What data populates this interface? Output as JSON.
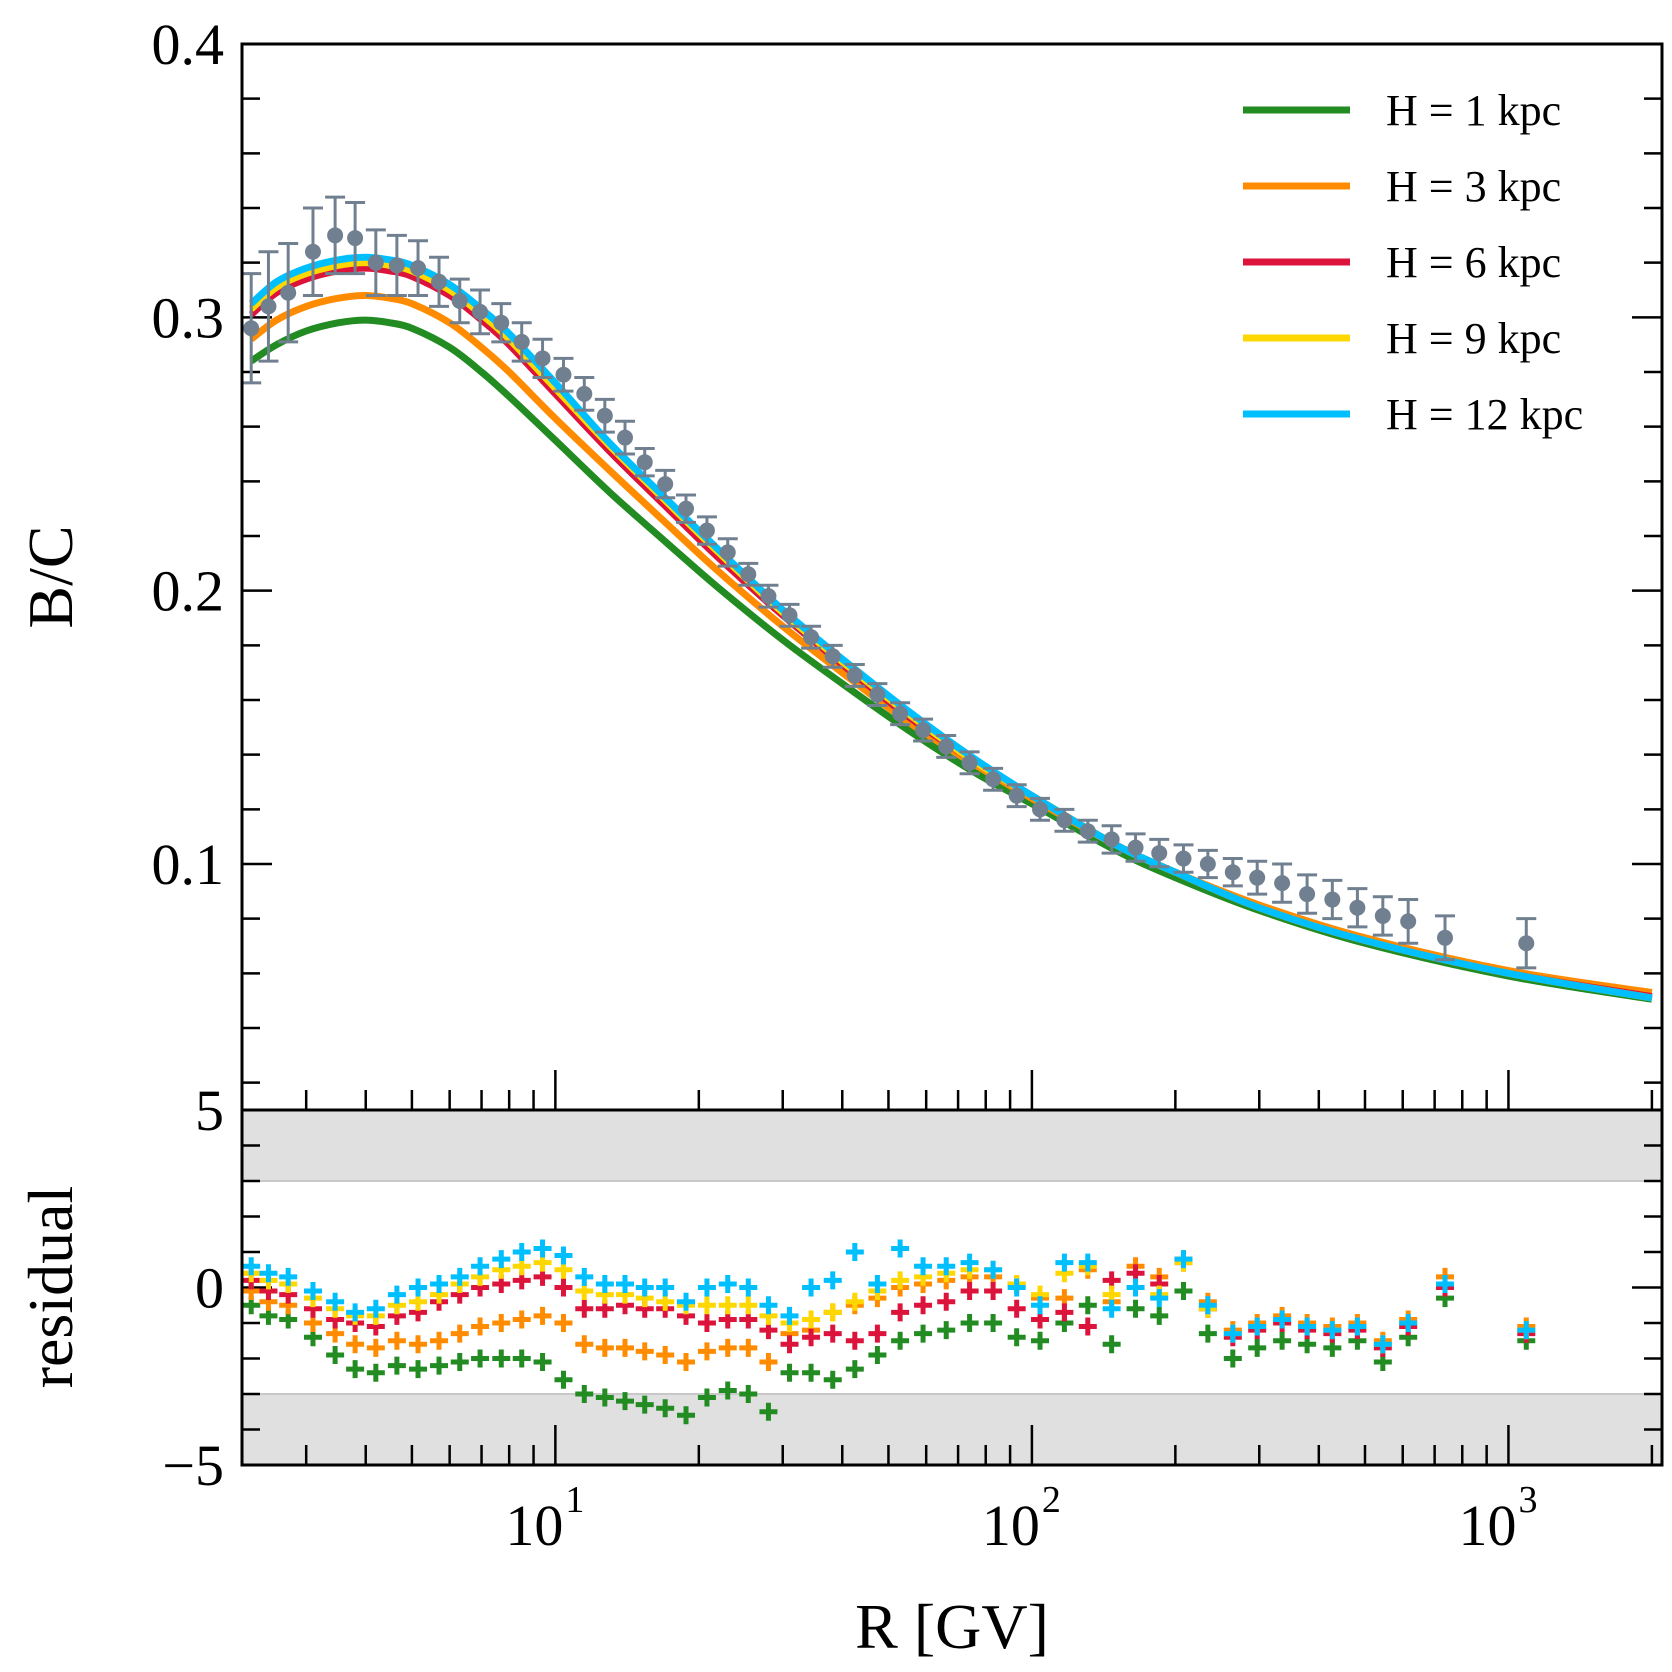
{
  "chart_data": [
    {
      "type": "line",
      "panel": "top",
      "title": "",
      "xlabel": "",
      "ylabel": "B/C",
      "xscale": "log",
      "xlim": [
        2.2,
        2100
      ],
      "ylim": [
        0.01,
        0.4
      ],
      "yticks_labeled": [
        0.1,
        0.2,
        0.3,
        0.4
      ],
      "ytick_labels": [
        "0.1",
        "0.2",
        "0.3",
        "0.4"
      ],
      "ytick_minor_step": 0.02,
      "legend_position": "top-right",
      "series": [
        {
          "name": "H = 1 kpc",
          "color": "#228b22",
          "x": [
            2.3,
            2.6,
            3,
            3.5,
            4,
            4.5,
            5,
            6,
            7,
            8,
            10,
            13,
            17,
            22,
            30,
            40,
            55,
            75,
            100,
            150,
            200,
            300,
            500,
            1000,
            2000
          ],
          "y": [
            0.284,
            0.29,
            0.295,
            0.298,
            0.299,
            0.298,
            0.296,
            0.289,
            0.28,
            0.271,
            0.255,
            0.236,
            0.218,
            0.201,
            0.182,
            0.166,
            0.149,
            0.134,
            0.122,
            0.105,
            0.095,
            0.083,
            0.071,
            0.059,
            0.0505
          ]
        },
        {
          "name": "H = 3 kpc",
          "color": "#ff8c00",
          "x": [
            2.3,
            2.6,
            3,
            3.5,
            4,
            4.5,
            5,
            6,
            7,
            8,
            10,
            13,
            17,
            22,
            30,
            40,
            55,
            75,
            100,
            150,
            200,
            300,
            500,
            1000,
            2000
          ],
          "y": [
            0.292,
            0.299,
            0.304,
            0.307,
            0.308,
            0.307,
            0.305,
            0.298,
            0.289,
            0.28,
            0.263,
            0.244,
            0.225,
            0.207,
            0.187,
            0.17,
            0.152,
            0.137,
            0.124,
            0.107,
            0.097,
            0.085,
            0.073,
            0.061,
            0.053
          ]
        },
        {
          "name": "H = 6 kpc",
          "color": "#dc143c",
          "x": [
            2.3,
            2.6,
            3,
            3.5,
            4,
            4.5,
            5,
            6,
            7,
            8,
            10,
            13,
            17,
            22,
            30,
            40,
            55,
            75,
            100,
            150,
            200,
            300,
            500,
            1000,
            2000
          ],
          "y": [
            0.301,
            0.309,
            0.314,
            0.317,
            0.318,
            0.317,
            0.315,
            0.308,
            0.299,
            0.29,
            0.272,
            0.251,
            0.231,
            0.212,
            0.191,
            0.173,
            0.154,
            0.138,
            0.125,
            0.107,
            0.097,
            0.084,
            0.072,
            0.06,
            0.0515
          ]
        },
        {
          "name": "H = 9 kpc",
          "color": "#ffd700",
          "x": [
            2.3,
            2.6,
            3,
            3.5,
            4,
            4.5,
            5,
            6,
            7,
            8,
            10,
            13,
            17,
            22,
            30,
            40,
            55,
            75,
            100,
            150,
            200,
            300,
            500,
            1000,
            2000
          ],
          "y": [
            0.303,
            0.311,
            0.316,
            0.319,
            0.32,
            0.319,
            0.317,
            0.31,
            0.301,
            0.292,
            0.274,
            0.253,
            0.233,
            0.214,
            0.192,
            0.174,
            0.155,
            0.138,
            0.125,
            0.107,
            0.097,
            0.084,
            0.072,
            0.06,
            0.051
          ]
        },
        {
          "name": "H = 12 kpc",
          "color": "#00bfff",
          "x": [
            2.3,
            2.6,
            3,
            3.5,
            4,
            4.5,
            5,
            6,
            7,
            8,
            10,
            13,
            17,
            22,
            30,
            40,
            55,
            75,
            100,
            150,
            200,
            300,
            500,
            1000,
            2000
          ],
          "y": [
            0.305,
            0.313,
            0.318,
            0.321,
            0.322,
            0.321,
            0.319,
            0.312,
            0.303,
            0.294,
            0.276,
            0.254,
            0.234,
            0.215,
            0.193,
            0.175,
            0.156,
            0.139,
            0.125,
            0.107,
            0.097,
            0.084,
            0.072,
            0.06,
            0.051
          ]
        }
      ],
      "data_points": {
        "color": "#708090",
        "x": [
          2.3,
          2.5,
          2.75,
          3.1,
          3.45,
          3.8,
          4.2,
          4.65,
          5.15,
          5.7,
          6.3,
          6.95,
          7.7,
          8.5,
          9.4,
          10.4,
          11.5,
          12.7,
          14.0,
          15.4,
          17.0,
          18.8,
          20.8,
          23.0,
          25.4,
          28.0,
          31.0,
          34.4,
          38.2,
          42.5,
          47.4,
          52.9,
          59.1,
          66.1,
          74.0,
          82.9,
          92.9,
          104.0,
          117.0,
          131.0,
          147.0,
          165.0,
          185.0,
          208.0,
          234.0,
          264.0,
          297.0,
          335.0,
          378.0,
          427.0,
          482.0,
          545.0,
          616.0,
          736.0,
          1090.0
        ],
        "y": [
          0.296,
          0.304,
          0.309,
          0.324,
          0.33,
          0.329,
          0.32,
          0.319,
          0.318,
          0.313,
          0.306,
          0.302,
          0.298,
          0.291,
          0.285,
          0.279,
          0.272,
          0.264,
          0.256,
          0.247,
          0.239,
          0.23,
          0.222,
          0.214,
          0.206,
          0.198,
          0.191,
          0.183,
          0.176,
          0.169,
          0.162,
          0.155,
          0.149,
          0.143,
          0.137,
          0.131,
          0.125,
          0.12,
          0.116,
          0.112,
          0.109,
          0.106,
          0.104,
          0.102,
          0.1,
          0.097,
          0.095,
          0.093,
          0.089,
          0.087,
          0.084,
          0.081,
          0.079,
          0.073,
          0.071
        ],
        "yerr": [
          0.02,
          0.02,
          0.018,
          0.016,
          0.014,
          0.013,
          0.012,
          0.011,
          0.01,
          0.009,
          0.008,
          0.008,
          0.007,
          0.007,
          0.007,
          0.006,
          0.006,
          0.006,
          0.006,
          0.005,
          0.005,
          0.005,
          0.005,
          0.005,
          0.004,
          0.004,
          0.004,
          0.004,
          0.004,
          0.004,
          0.004,
          0.004,
          0.004,
          0.004,
          0.004,
          0.004,
          0.004,
          0.004,
          0.004,
          0.004,
          0.005,
          0.005,
          0.005,
          0.005,
          0.005,
          0.005,
          0.006,
          0.007,
          0.007,
          0.007,
          0.007,
          0.007,
          0.008,
          0.008,
          0.009
        ]
      }
    },
    {
      "type": "scatter",
      "panel": "bottom",
      "xlabel": "R [GV]",
      "ylabel": "residual",
      "xscale": "log",
      "xlim": [
        2.2,
        2100
      ],
      "ylim": [
        -5,
        5
      ],
      "yticks_labeled": [
        -5,
        0,
        5
      ],
      "ytick_labels": [
        "−5",
        "0",
        "5"
      ],
      "ytick_minor_step": 1,
      "xticks_major": [
        10,
        100,
        1000
      ],
      "xtick_labels": [
        {
          "base": "10",
          "exp": "1"
        },
        {
          "base": "10",
          "exp": "2"
        },
        {
          "base": "10",
          "exp": "3"
        }
      ],
      "shaded_bands": [
        [
          3,
          5
        ],
        [
          -5,
          -3
        ]
      ],
      "band_color": "#e0e0e0",
      "marker": "plus",
      "x": [
        2.3,
        2.5,
        2.75,
        3.1,
        3.45,
        3.8,
        4.2,
        4.65,
        5.15,
        5.7,
        6.3,
        6.95,
        7.7,
        8.5,
        9.4,
        10.4,
        11.5,
        12.7,
        14.0,
        15.4,
        17.0,
        18.8,
        20.8,
        23.0,
        25.4,
        28.0,
        31.0,
        34.4,
        38.2,
        42.5,
        47.4,
        52.9,
        59.1,
        66.1,
        74.0,
        82.9,
        92.9,
        104.0,
        117.0,
        131.0,
        147.0,
        165.0,
        185.0,
        208.0,
        234.0,
        264.0,
        297.0,
        335.0,
        378.0,
        427.0,
        482.0,
        545.0,
        616.0,
        736.0,
        1090.0
      ],
      "series": [
        {
          "name": "H = 1 kpc",
          "color": "#228b22",
          "values": [
            -0.5,
            -0.8,
            -0.9,
            -1.4,
            -1.9,
            -2.3,
            -2.4,
            -2.2,
            -2.3,
            -2.2,
            -2.1,
            -2.0,
            -2.0,
            -2.0,
            -2.1,
            -2.6,
            -3.0,
            -3.1,
            -3.2,
            -3.3,
            -3.4,
            -3.6,
            -3.1,
            -2.9,
            -3.0,
            -3.5,
            -2.4,
            -2.4,
            -2.6,
            -2.3,
            -1.9,
            -1.5,
            -1.3,
            -1.2,
            -1.0,
            -1.0,
            -1.4,
            -1.5,
            -1.0,
            -0.5,
            -1.6,
            -0.6,
            -0.8,
            -0.1,
            -1.3,
            -2.0,
            -1.7,
            -1.5,
            -1.6,
            -1.7,
            -1.5,
            -2.1,
            -1.4,
            -0.3,
            -1.5
          ]
        },
        {
          "name": "H = 3 kpc",
          "color": "#ff8c00",
          "values": [
            -0.1,
            -0.4,
            -0.5,
            -1.0,
            -1.3,
            -1.6,
            -1.7,
            -1.5,
            -1.6,
            -1.5,
            -1.3,
            -1.1,
            -1.0,
            -0.9,
            -0.8,
            -1.0,
            -1.6,
            -1.7,
            -1.7,
            -1.8,
            -1.9,
            -2.1,
            -1.8,
            -1.7,
            -1.7,
            -2.1,
            -1.3,
            -1.2,
            -0.7,
            -0.5,
            -0.3,
            0.0,
            0.1,
            0.2,
            0.3,
            0.3,
            0.1,
            -0.3,
            -0.3,
            0.5,
            -0.4,
            0.6,
            0.3,
            0.8,
            -0.4,
            -1.2,
            -1.0,
            -0.8,
            -1.0,
            -1.1,
            -1.0,
            -1.5,
            -0.9,
            0.3,
            -1.1
          ]
        },
        {
          "name": "H = 6 kpc",
          "color": "#dc143c",
          "values": [
            0.2,
            -0.1,
            -0.2,
            -0.6,
            -0.9,
            -1.0,
            -1.1,
            -0.8,
            -0.7,
            -0.4,
            -0.2,
            0.0,
            0.1,
            0.2,
            0.3,
            0.0,
            -0.6,
            -0.6,
            -0.5,
            -0.6,
            -0.6,
            -0.8,
            -1.0,
            -0.9,
            -0.9,
            -1.2,
            -1.6,
            -1.4,
            -1.3,
            -1.5,
            -1.3,
            -0.7,
            -0.5,
            -0.4,
            -0.1,
            -0.1,
            -0.6,
            -0.9,
            -0.7,
            -1.1,
            0.2,
            0.4,
            0.1,
            0.7,
            -0.6,
            -1.4,
            -1.2,
            -1.0,
            -1.2,
            -1.3,
            -1.2,
            -1.7,
            -1.1,
            0.0,
            -1.3
          ]
        },
        {
          "name": "H = 9 kpc",
          "color": "#ffd700",
          "values": [
            0.4,
            0.2,
            0.1,
            -0.3,
            -0.6,
            -0.8,
            -0.8,
            -0.5,
            -0.4,
            -0.2,
            0.1,
            0.3,
            0.5,
            0.6,
            0.7,
            0.5,
            -0.1,
            -0.2,
            -0.2,
            -0.3,
            -0.4,
            -0.5,
            -0.5,
            -0.5,
            -0.5,
            -0.8,
            -1.0,
            -0.9,
            -0.7,
            -0.4,
            -0.1,
            0.2,
            0.3,
            0.4,
            0.5,
            0.5,
            0.1,
            -0.2,
            0.4,
            0.6,
            -0.2,
            0.0,
            -0.2,
            0.7,
            -0.6,
            -1.3,
            -1.1,
            -0.9,
            -1.1,
            -1.2,
            -1.1,
            -1.6,
            -1.0,
            0.1,
            -1.2
          ]
        },
        {
          "name": "H = 12 kpc",
          "color": "#00bfff",
          "values": [
            0.6,
            0.4,
            0.3,
            -0.1,
            -0.4,
            -0.7,
            -0.6,
            -0.2,
            0.0,
            0.1,
            0.3,
            0.6,
            0.8,
            1.0,
            1.1,
            0.9,
            0.3,
            0.1,
            0.1,
            0.0,
            0.0,
            -0.4,
            0.0,
            0.1,
            0.0,
            -0.5,
            -0.8,
            0.0,
            0.2,
            1.0,
            0.1,
            1.1,
            0.6,
            0.6,
            0.7,
            0.5,
            0.0,
            -0.5,
            0.7,
            0.7,
            -0.6,
            0.0,
            -0.3,
            0.8,
            -0.5,
            -1.3,
            -1.1,
            -0.9,
            -1.1,
            -1.2,
            -1.1,
            -1.6,
            -1.0,
            0.1,
            -1.2
          ]
        }
      ]
    }
  ]
}
